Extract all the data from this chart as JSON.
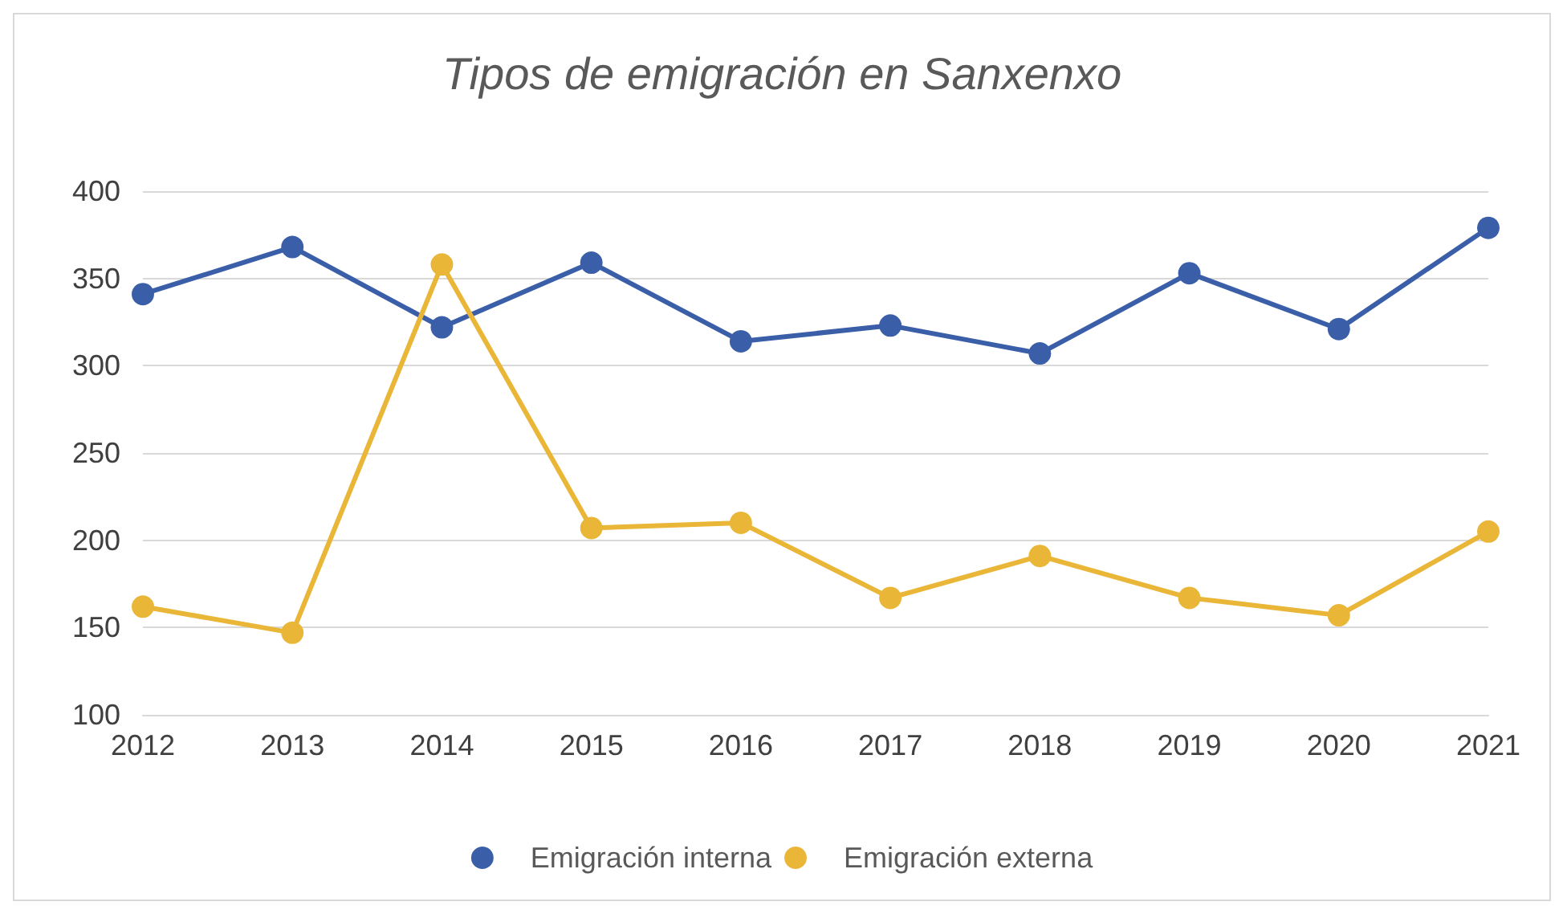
{
  "chart_data": {
    "type": "line",
    "title": "Tipos de emigración en Sanxenxo",
    "categories": [
      "2012",
      "2013",
      "2014",
      "2015",
      "2016",
      "2017",
      "2018",
      "2019",
      "2020",
      "2021"
    ],
    "series": [
      {
        "name": "Emigración interna",
        "color": "#3a5fa8",
        "values": [
          341,
          368,
          322,
          359,
          314,
          323,
          307,
          353,
          321,
          379
        ]
      },
      {
        "name": "Emigración externa",
        "color": "#e9b637",
        "values": [
          162,
          147,
          358,
          207,
          210,
          167,
          191,
          167,
          157,
          205
        ]
      }
    ],
    "ylim": [
      100,
      400
    ],
    "yticks": [
      100,
      150,
      200,
      250,
      300,
      350,
      400
    ],
    "grid": "y",
    "legend": "bottom",
    "marker": "circle",
    "line_style": "solid"
  }
}
